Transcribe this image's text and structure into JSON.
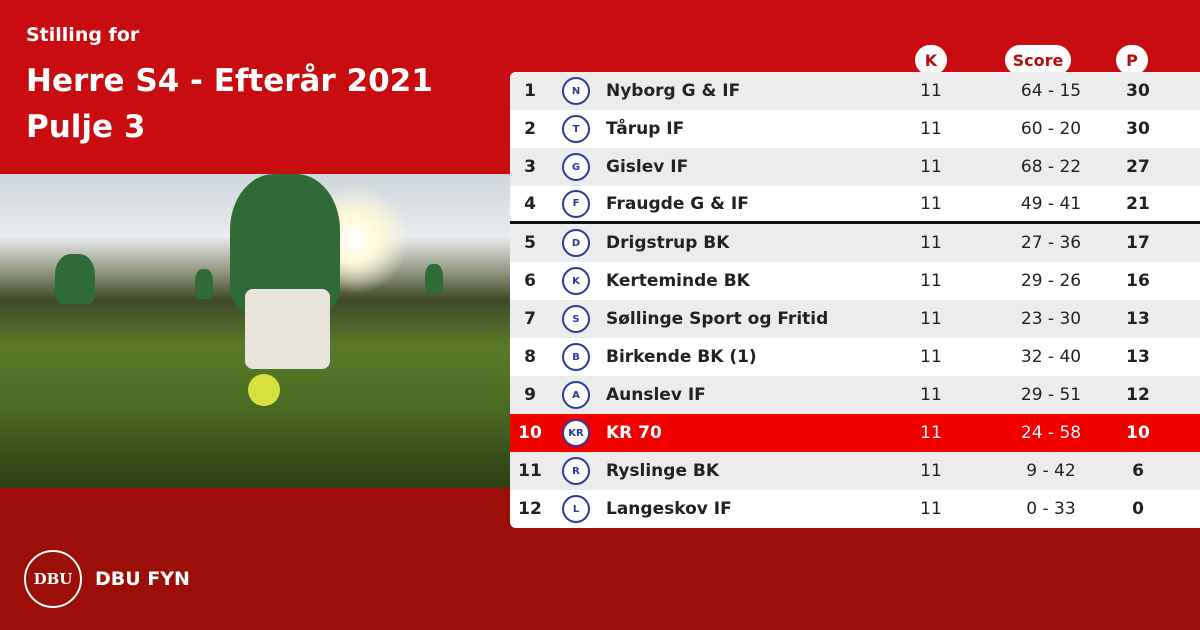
{
  "header": {
    "subtitle": "Stilling for",
    "title_line1": "Herre S4 - Efterår 2021",
    "title_line2": "Pulje 3"
  },
  "columns": {
    "k": "K",
    "score": "Score",
    "p": "P"
  },
  "colors": {
    "primary_red": "#c80c0f",
    "footer_red": "#9c0f08",
    "highlight": "#f20000"
  },
  "highlight_team": "KR 70",
  "rows": [
    {
      "pos": "1",
      "team": "Nyborg G & IF",
      "k": "11",
      "score": "64 - 15",
      "p": "30",
      "logo": "N"
    },
    {
      "pos": "2",
      "team": "Tårup IF",
      "k": "11",
      "score": "60 - 20",
      "p": "30",
      "logo": "T"
    },
    {
      "pos": "3",
      "team": "Gislev IF",
      "k": "11",
      "score": "68 - 22",
      "p": "27",
      "logo": "G"
    },
    {
      "pos": "4",
      "team": "Fraugde G & IF",
      "k": "11",
      "score": "49 - 41",
      "p": "21",
      "logo": "F"
    },
    {
      "pos": "5",
      "team": "Drigstrup BK",
      "k": "11",
      "score": "27 - 36",
      "p": "17",
      "logo": "D"
    },
    {
      "pos": "6",
      "team": "Kerteminde BK",
      "k": "11",
      "score": "29 - 26",
      "p": "16",
      "logo": "K"
    },
    {
      "pos": "7",
      "team": "Søllinge Sport og Fritid",
      "k": "11",
      "score": "23 - 30",
      "p": "13",
      "logo": "S"
    },
    {
      "pos": "8",
      "team": "Birkende BK (1)",
      "k": "11",
      "score": "32 - 40",
      "p": "13",
      "logo": "B"
    },
    {
      "pos": "9",
      "team": "Aunslev IF",
      "k": "11",
      "score": "29 - 51",
      "p": "12",
      "logo": "A"
    },
    {
      "pos": "10",
      "team": "KR 70",
      "k": "11",
      "score": "24 - 58",
      "p": "10",
      "logo": "KR"
    },
    {
      "pos": "11",
      "team": "Ryslinge BK",
      "k": "11",
      "score": "9 - 42",
      "p": "6",
      "logo": "R"
    },
    {
      "pos": "12",
      "team": "Langeskov IF",
      "k": "11",
      "score": "0 - 33",
      "p": "0",
      "logo": "L"
    }
  ],
  "footer": {
    "brand": "DBU FYN",
    "logo_text": "DBU"
  }
}
